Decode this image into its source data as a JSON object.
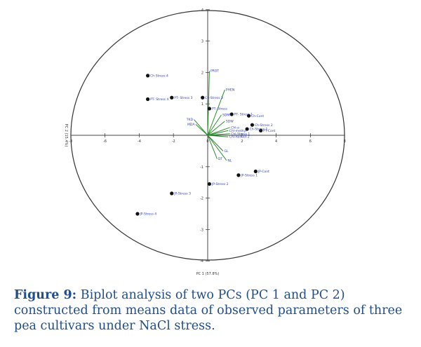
{
  "caption": {
    "label": "Figure 9:",
    "text": "Biplot analysis of two PCs (PC 1 and PC 2) constructed from means data of observed parameters of three pea cultivars under NaCl stress."
  },
  "chart_data": {
    "type": "scatter",
    "xlabel": "PC 1 (57.8%)",
    "ylabel": "PC 2 (15.4%)",
    "xlim": [
      -8,
      8
    ],
    "ylim": [
      -4,
      4
    ],
    "xticks": [
      "-8",
      "-6",
      "-4",
      "-2",
      "0",
      "2",
      "4",
      "6",
      "8"
    ],
    "yticks": [
      "-4",
      "-3",
      "-2",
      "-1",
      "1",
      "2",
      "3",
      "4"
    ],
    "colors": {
      "points": "#111111",
      "loadings": "#2e8b2e",
      "labels": "#2f3fb0",
      "axes": "#444444"
    },
    "points": [
      {
        "label": "Ch-Stress 4",
        "x": -3.5,
        "y": 1.9
      },
      {
        "label": "PT- Stress 4",
        "x": -3.5,
        "y": 1.15
      },
      {
        "label": "PT- Stress 3",
        "x": -2.1,
        "y": 1.2
      },
      {
        "label": "Ch-Stress 3",
        "x": -0.3,
        "y": 1.2
      },
      {
        "label": "PT- Stress",
        "x": 0.1,
        "y": 0.85
      },
      {
        "label": "PT- Stress 1",
        "x": 1.4,
        "y": 0.67
      },
      {
        "label": "Ch-Cont",
        "x": 2.4,
        "y": 0.62
      },
      {
        "label": "Ch-Stress 2",
        "x": 2.6,
        "y": 0.33
      },
      {
        "label": "PT-Cont",
        "x": 3.1,
        "y": 0.15
      },
      {
        "label": "Ch-Stress 1",
        "x": 2.3,
        "y": 0.2
      },
      {
        "label": "JP-Cont",
        "x": 2.8,
        "y": -1.15
      },
      {
        "label": "JP-Stress 1",
        "x": 1.8,
        "y": -1.27
      },
      {
        "label": "JP-Stress 2",
        "x": 0.1,
        "y": -1.55
      },
      {
        "label": "JP-Stress 3",
        "x": -2.1,
        "y": -1.85
      },
      {
        "label": "JP-Stress 4",
        "x": -4.1,
        "y": -2.5
      }
    ],
    "loadings": [
      {
        "label": "PROT",
        "x": 0.1,
        "y": 2.05
      },
      {
        "label": "PHEN",
        "x": 1.0,
        "y": 1.45
      },
      {
        "label": "SDM",
        "x": 0.8,
        "y": 0.65
      },
      {
        "label": "SDW",
        "x": 1.0,
        "y": 0.45
      },
      {
        "label": "Chl-a",
        "x": 1.3,
        "y": 0.25
      },
      {
        "label": "TKD",
        "x": -0.8,
        "y": 0.5
      },
      {
        "label": "MDA",
        "x": -0.7,
        "y": 0.35
      },
      {
        "label": "Chl-methyl",
        "x": 1.2,
        "y": 0.15
      },
      {
        "label": "Chl-Stress 1",
        "x": 1.3,
        "y": 0.05
      },
      {
        "label": "Chl-Reduct 2",
        "x": 1.2,
        "y": -0.05
      },
      {
        "label": "GL",
        "x": 0.9,
        "y": -0.5
      },
      {
        "label": "NL",
        "x": 1.1,
        "y": -0.8
      },
      {
        "label": "DT",
        "x": 0.55,
        "y": -0.75
      }
    ]
  }
}
